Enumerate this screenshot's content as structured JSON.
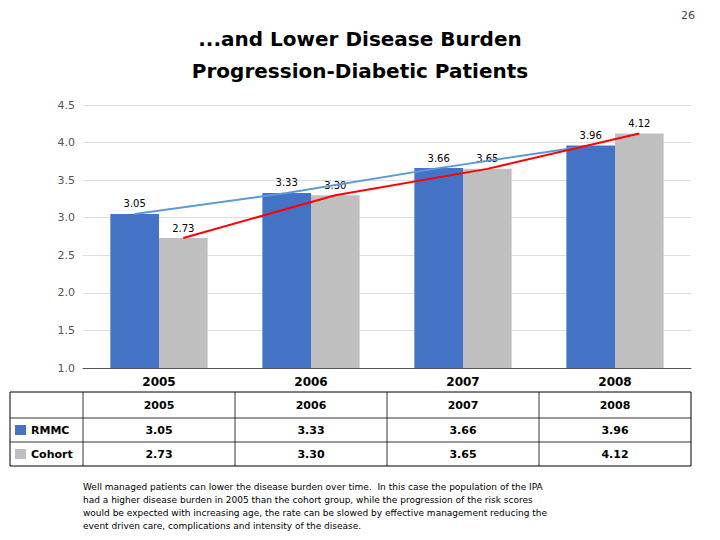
{
  "chart_data": {
    "type": "bar",
    "title": "...and Lower Disease Burden",
    "subtitle": "Progression-Diabetic Patients",
    "annotations": [
      "26",
      "Well managed patients can lower the disease burden over time.  In this case the population of the IPA",
      "had a higher disease burden in 2005 than the cohort group, while the progression of the risk scores",
      "would be expected with increasing age, the rate can be slowed by effective management reducing the",
      "event driven care, complications and intensity of the disease."
    ],
    "categories": [
      "2005",
      "2006",
      "2007",
      "2008"
    ],
    "series": [
      {
        "name": "RMMC",
        "type": "bar",
        "color": "#4472C4",
        "values": [
          3.05,
          3.33,
          3.66,
          3.96
        ],
        "value_labels": [
          "3.05",
          "3.33",
          "3.66",
          "3.96"
        ]
      },
      {
        "name": "Cohort",
        "type": "bar",
        "color": "#BFBFBF",
        "values": [
          2.73,
          3.3,
          3.65,
          4.12
        ],
        "value_labels": [
          "2.73",
          "3.30",
          "3.65",
          "4.12"
        ]
      },
      {
        "name": "RMMC",
        "type": "line",
        "color": "#5B9BD5",
        "values": [
          3.05,
          3.33,
          3.66,
          3.96
        ]
      },
      {
        "name": "Cohort",
        "type": "line",
        "color": "#FF0000",
        "values": [
          2.73,
          3.3,
          3.65,
          4.12
        ]
      }
    ],
    "ylim": [
      1.0,
      4.5
    ],
    "yticks": [
      {
        "value": 1.0,
        "label": "1.0"
      },
      1.5,
      {
        "value": 2.0,
        "label": "2.0"
      },
      2.5,
      {
        "value": 3.0,
        "label": "3.0"
      },
      3.5,
      {
        "value": 4.0,
        "label": "4.0"
      },
      4.5
    ],
    "grid": true,
    "data_labels": true
  }
}
